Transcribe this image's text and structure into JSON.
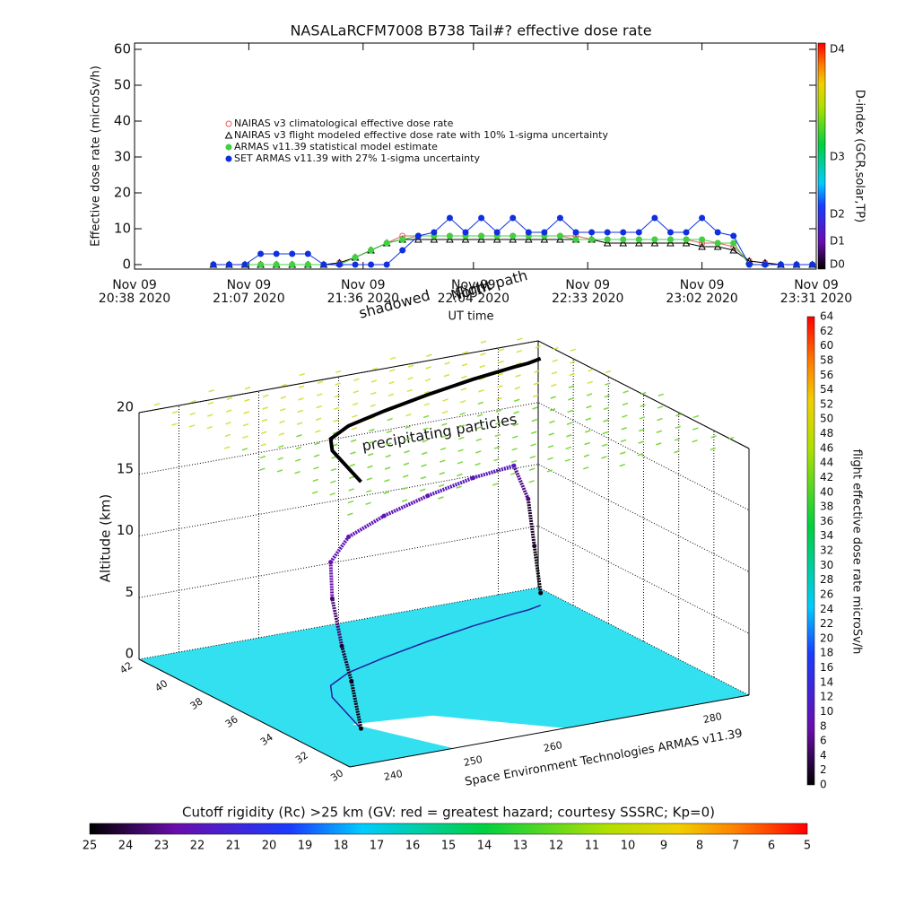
{
  "chart_data": [
    {
      "type": "line",
      "title": "NASALaRCFM7008  B738 Tail#? effective dose rate",
      "ylabel": "Effective dose rate (microSv/h)",
      "xlabel": "UT time",
      "x": [
        "2020-11-09 20:58",
        "2020-11-09 21:02",
        "2020-11-09 21:06",
        "2020-11-09 21:10",
        "2020-11-09 21:14",
        "2020-11-09 21:18",
        "2020-11-09 21:22",
        "2020-11-09 21:26",
        "2020-11-09 21:30",
        "2020-11-09 21:34",
        "2020-11-09 21:38",
        "2020-11-09 21:42",
        "2020-11-09 21:46",
        "2020-11-09 21:50",
        "2020-11-09 21:54",
        "2020-11-09 21:58",
        "2020-11-09 22:02",
        "2020-11-09 22:06",
        "2020-11-09 22:10",
        "2020-11-09 22:14",
        "2020-11-09 22:18",
        "2020-11-09 22:22",
        "2020-11-09 22:26",
        "2020-11-09 22:30",
        "2020-11-09 22:34",
        "2020-11-09 22:38",
        "2020-11-09 22:42",
        "2020-11-09 22:46",
        "2020-11-09 22:50",
        "2020-11-09 22:54",
        "2020-11-09 22:58",
        "2020-11-09 23:02",
        "2020-11-09 23:06",
        "2020-11-09 23:10",
        "2020-11-09 23:14",
        "2020-11-09 23:18",
        "2020-11-09 23:22",
        "2020-11-09 23:26",
        "2020-11-09 23:30"
      ],
      "xlim": [
        "2020-11-09 20:38",
        "2020-11-09 23:31"
      ],
      "xticks": [
        {
          "value": "2020-11-09 20:38",
          "label": [
            "Nov 09",
            "20:38 2020"
          ]
        },
        {
          "value": "2020-11-09 21:07",
          "label": [
            "Nov 09",
            "21:07 2020"
          ]
        },
        {
          "value": "2020-11-09 21:36",
          "label": [
            "Nov 09",
            "21:36 2020"
          ]
        },
        {
          "value": "2020-11-09 22:04",
          "label": [
            "Nov 09",
            "22:04 2020"
          ]
        },
        {
          "value": "2020-11-09 22:33",
          "label": [
            "Nov 09",
            "22:33 2020"
          ]
        },
        {
          "value": "2020-11-09 23:02",
          "label": [
            "Nov 09",
            "23:02 2020"
          ]
        },
        {
          "value": "2020-11-09 23:31",
          "label": [
            "Nov 09",
            "23:31 2020"
          ]
        }
      ],
      "ylim": [
        -1.25,
        61.75
      ],
      "yticks": [
        0,
        10,
        20,
        30,
        40,
        50,
        60
      ],
      "series": [
        {
          "name": "NAIRAS v3 climatological effective dose rate",
          "color": "#e06060",
          "marker": "circle-open",
          "values": [
            0,
            0,
            0,
            0,
            0,
            0,
            0,
            0,
            0.5,
            2,
            4,
            6,
            8,
            8,
            8,
            8,
            8,
            8,
            8,
            8,
            8,
            8,
            8,
            8,
            7,
            7,
            7,
            7,
            7,
            7,
            7,
            6,
            6,
            5,
            1,
            0.5,
            0,
            0,
            0
          ]
        },
        {
          "name": "NAIRAS v3 flight modeled effective dose rate with 10% 1-sigma uncertainty",
          "color": "#000000",
          "marker": "triangle-open",
          "values": [
            0,
            0,
            0,
            0,
            0,
            0,
            0,
            0,
            0.5,
            2,
            4,
            6,
            7,
            7,
            7,
            7,
            7,
            7,
            7,
            7,
            7,
            7,
            7,
            7,
            7,
            6,
            6,
            6,
            6,
            6,
            6,
            5,
            5,
            4,
            1,
            0.5,
            0,
            0,
            0
          ]
        },
        {
          "name": "ARMAS v11.39 statistical model estimate",
          "color": "#40d040",
          "marker": "circle",
          "values": [
            0,
            0,
            0,
            0,
            0,
            0,
            0,
            0,
            0,
            2,
            4,
            6,
            7,
            8,
            8,
            8,
            8,
            8,
            8,
            8,
            8,
            8,
            8,
            7,
            7,
            7,
            7,
            7,
            7,
            7,
            7,
            7,
            6,
            6,
            0,
            0,
            0,
            0,
            0
          ]
        },
        {
          "name": "SET ARMAS v11.39 with 27% 1-sigma uncertainty",
          "color": "#1030e0",
          "marker": "circle",
          "values": [
            0,
            0,
            0,
            3,
            3,
            3,
            3,
            0,
            0,
            0,
            0,
            0,
            4,
            8,
            9,
            13,
            9,
            13,
            9,
            13,
            9,
            9,
            13,
            9,
            9,
            9,
            9,
            9,
            13,
            9,
            9,
            13,
            9,
            8,
            0,
            0,
            0,
            0,
            0
          ]
        }
      ],
      "colorbar": {
        "label": "D-index (GCR,solar,TP)",
        "lim": [
          -1.25,
          61.75
        ],
        "ticks": [
          {
            "value": 0,
            "label": "D0"
          },
          {
            "value": 6.5,
            "label": "D1"
          },
          {
            "value": 14,
            "label": "D2"
          },
          {
            "value": 30,
            "label": "D3"
          },
          {
            "value": 60,
            "label": "D4"
          }
        ]
      }
    },
    {
      "type": "surface3d",
      "zlabel": "Altitude (km)",
      "zlim": [
        0,
        20
      ],
      "zticks": [
        0,
        5,
        10,
        15,
        20
      ],
      "latlim": [
        30,
        42
      ],
      "latticks": [
        30,
        32,
        34,
        36,
        38,
        40,
        42
      ],
      "lonlim": [
        235,
        285
      ],
      "lonticks": [
        240,
        250,
        260,
        280
      ],
      "annotations": [
        "precipitating particles",
        "flight path",
        "shadowed",
        "North"
      ],
      "credit": "Space Environment Technologies ARMAS v11.39",
      "flight_path": {
        "lon": [
          243,
          244,
          245,
          246,
          248,
          252,
          258,
          265,
          272,
          278,
          280,
          281,
          282
        ],
        "lat": [
          33,
          34,
          35,
          36,
          37,
          37.8,
          38.5,
          39.2,
          39.8,
          40.2,
          40.3,
          40.4,
          40.5
        ],
        "alt": [
          0,
          3,
          5,
          8,
          10,
          11,
          11.5,
          11.8,
          12,
          12,
          9,
          5,
          1
        ],
        "dose": [
          0.5,
          1,
          2,
          5,
          8,
          9,
          9,
          9,
          10,
          10,
          6,
          2,
          0.5
        ]
      },
      "colorbar": {
        "label": "flight effective dose rate microSv/h",
        "lim": [
          0,
          64
        ],
        "ticks": [
          0,
          2,
          4,
          6,
          8,
          10,
          12,
          14,
          16,
          18,
          20,
          22,
          24,
          26,
          28,
          30,
          32,
          34,
          36,
          38,
          40,
          42,
          44,
          46,
          48,
          50,
          52,
          54,
          56,
          58,
          60,
          62,
          64
        ]
      },
      "cutoff_colorbar": {
        "label": "Cutoff rigidity (Rc) >25 km (GV: red = greatest hazard; courtesy SSSRC; Kp=0)",
        "lim": [
          25,
          5
        ],
        "ticks": [
          25,
          24,
          23,
          22,
          21,
          20,
          19,
          18,
          17,
          16,
          15,
          14,
          13,
          12,
          11,
          10,
          9,
          8,
          7,
          6,
          5
        ]
      }
    }
  ]
}
